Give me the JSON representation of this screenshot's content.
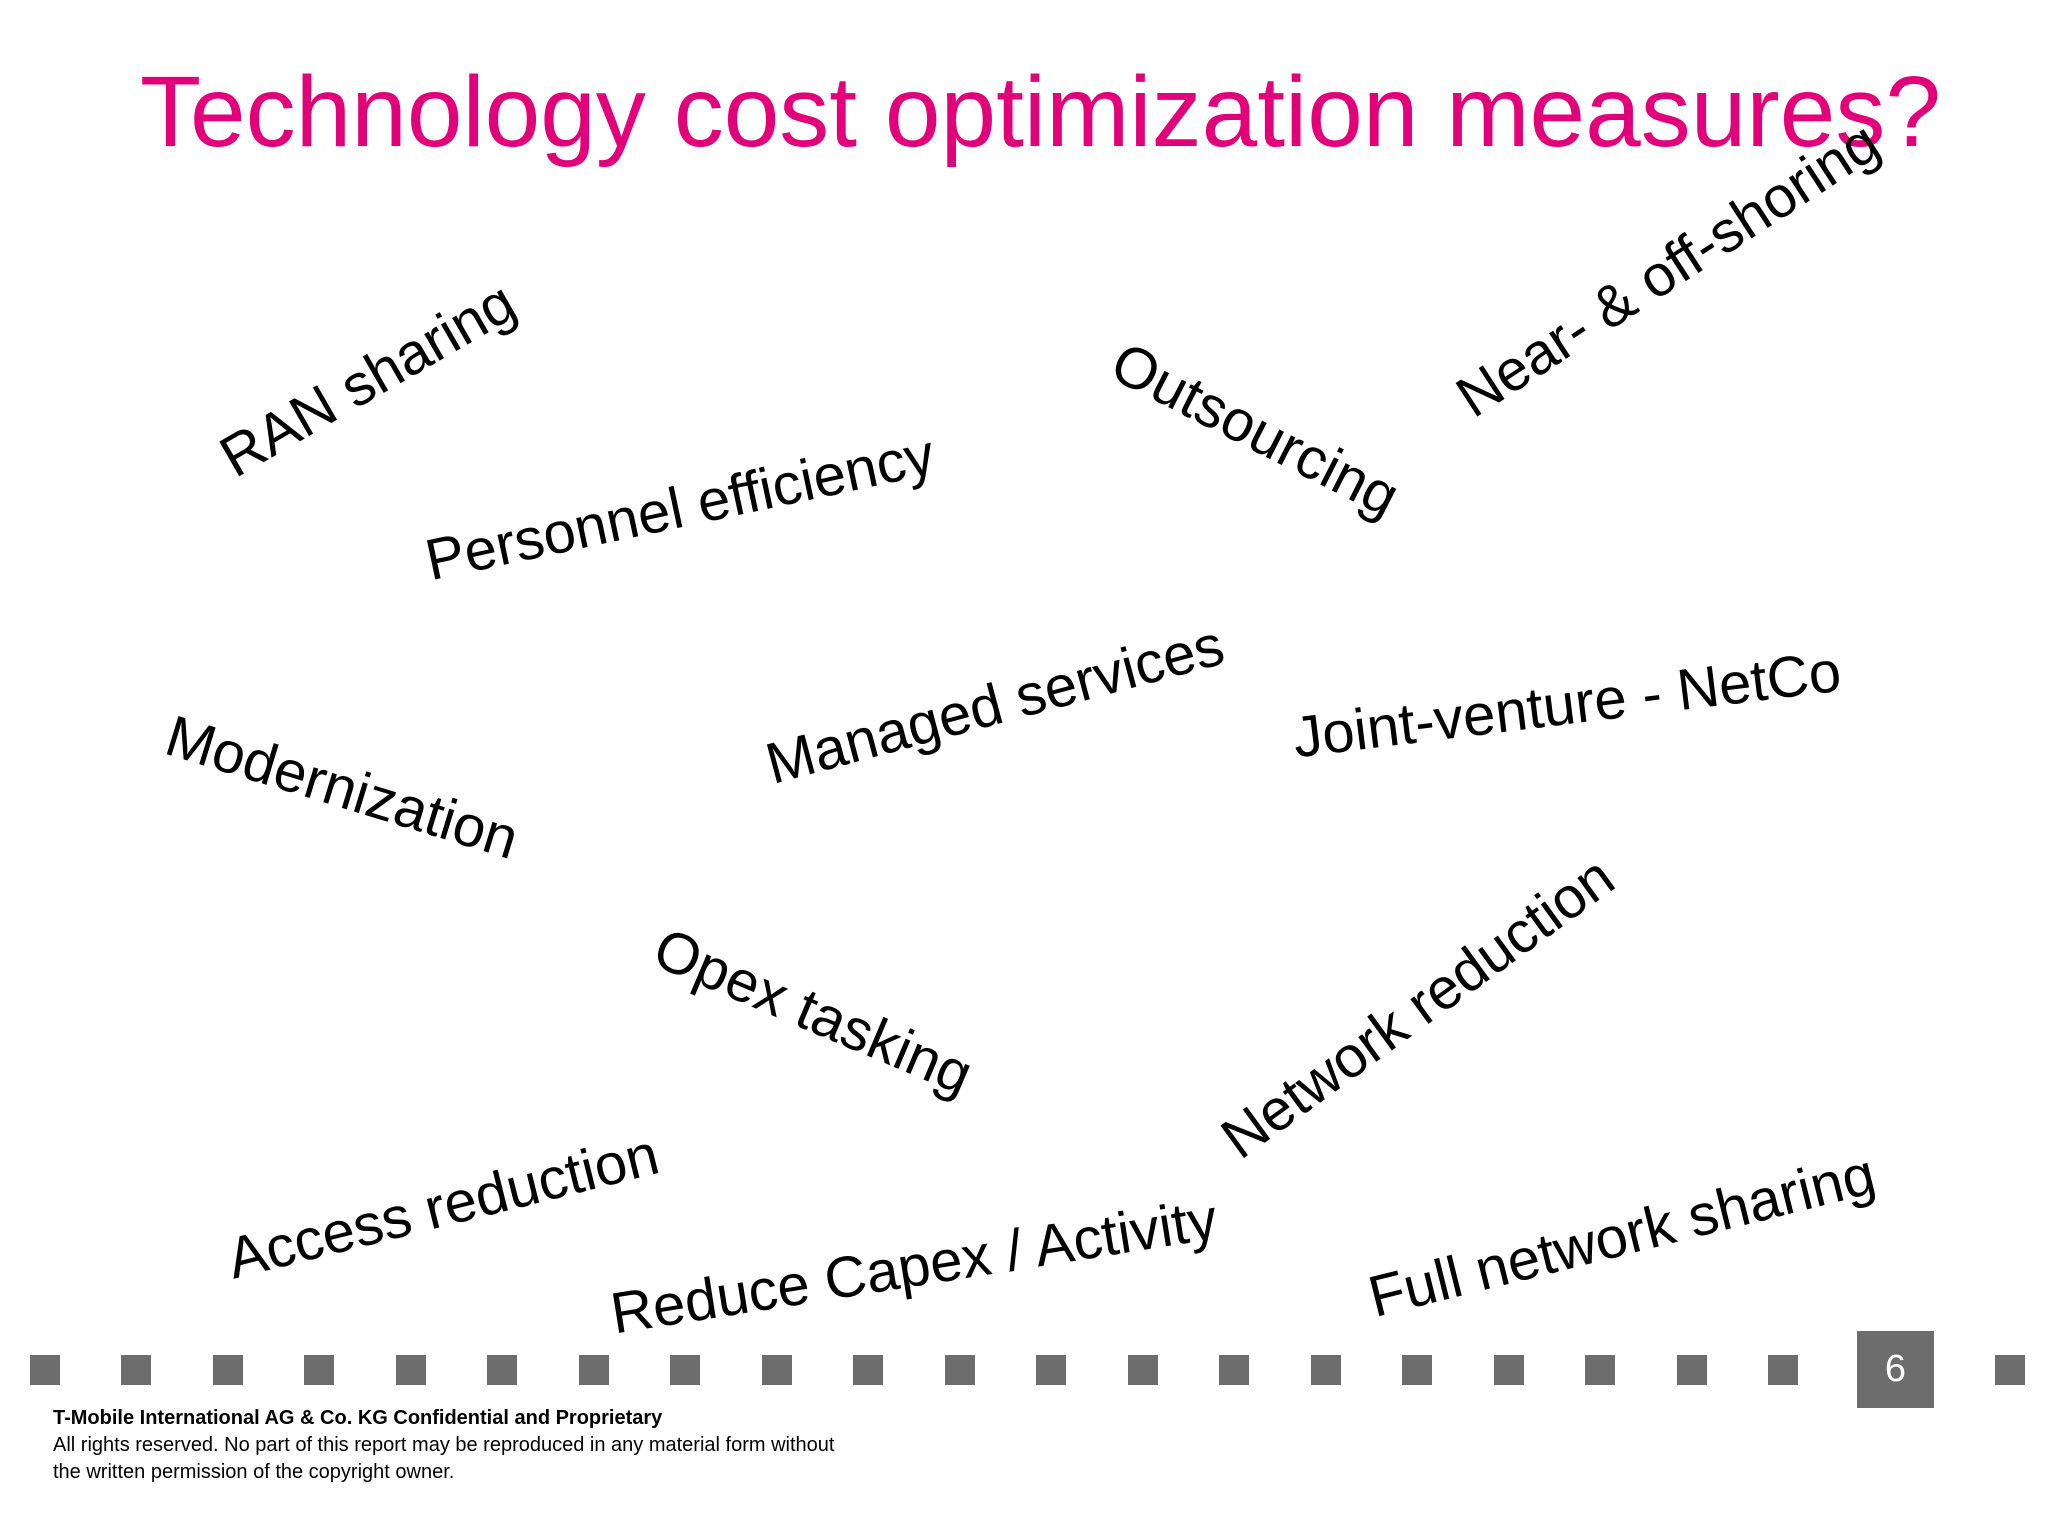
{
  "title": "Technology cost optimization measures?",
  "phrases": {
    "ran_sharing": "RAN sharing",
    "personnel_efficiency": "Personnel efficiency",
    "outsourcing": "Outsourcing",
    "near_off_shoring": "Near- & off-shoring",
    "modernization": "Modernization",
    "managed_services": "Managed services",
    "joint_venture": "Joint-venture - NetCo",
    "opex_tasking": "Opex tasking",
    "network_reduction": "Network reduction",
    "access_reduction": "Access reduction",
    "reduce_capex": "Reduce Capex / Activity",
    "full_network_sharing": "Full network sharing"
  },
  "footer": {
    "company": "T-Mobile International AG & Co. KG Confidential and Proprietary",
    "line1": "All rights reserved. No part of this report may be reproduced in any material form without",
    "line2": "the written permission of the copyright owner."
  },
  "page_number": "6",
  "colors": {
    "title": "#e2007a",
    "text": "#000000",
    "marker": "#6d6d6d"
  }
}
